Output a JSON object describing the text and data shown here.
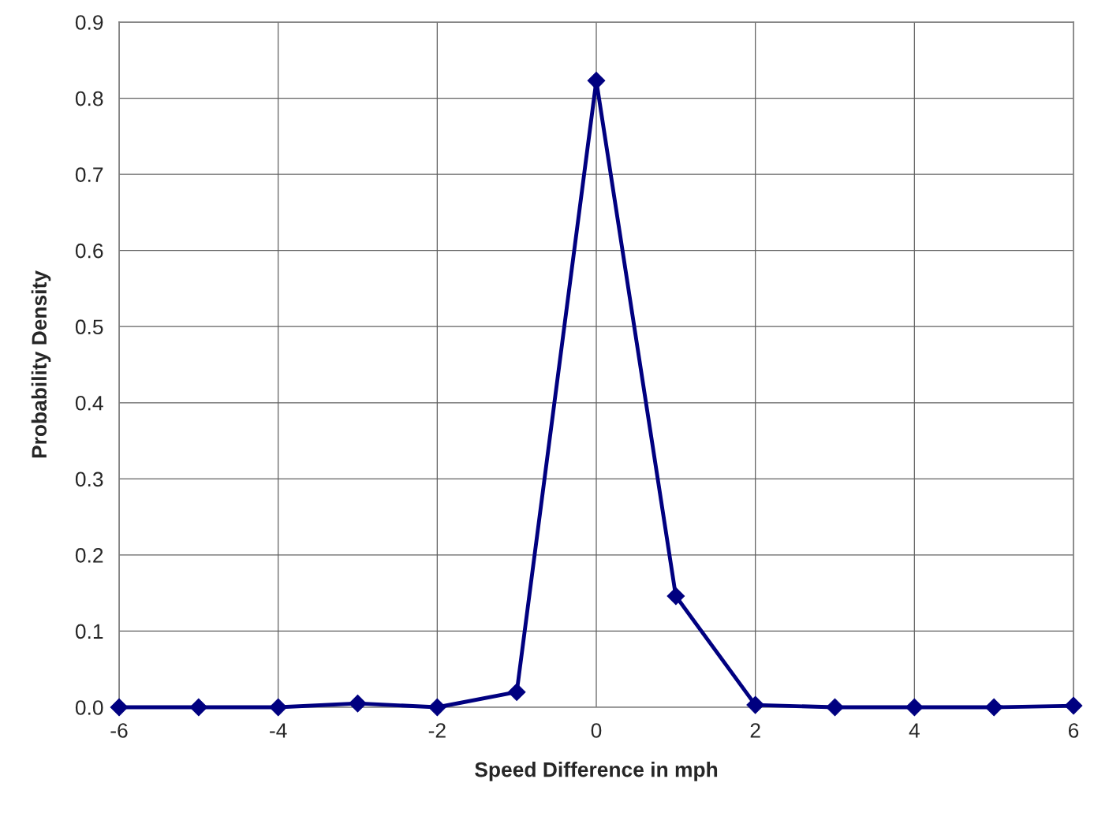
{
  "chart_data": {
    "type": "line",
    "xlabel": "Speed Difference in mph",
    "ylabel": "Probability Density",
    "x": [
      -6,
      -5,
      -4,
      -3,
      -2,
      -1,
      0,
      1,
      2,
      3,
      4,
      5,
      6
    ],
    "series": [
      {
        "color": "#000080",
        "values": [
          0,
          0,
          0,
          0.005,
          0,
          0.02,
          0.823,
          0.146,
          0.003,
          0,
          0,
          0,
          0.002
        ]
      }
    ],
    "xlim": [
      -6,
      6
    ],
    "xticks": [
      -6,
      -4,
      -2,
      0,
      2,
      4,
      6
    ],
    "ylim": [
      0,
      0.9
    ],
    "yticks": [
      {
        "value": 0,
        "label": "0.0"
      },
      0.1,
      0.2,
      0.3,
      0.4,
      0.5,
      0.6,
      0.7,
      0.8,
      0.9
    ],
    "grid": true,
    "marker": "diamond",
    "line_style": "solid"
  }
}
